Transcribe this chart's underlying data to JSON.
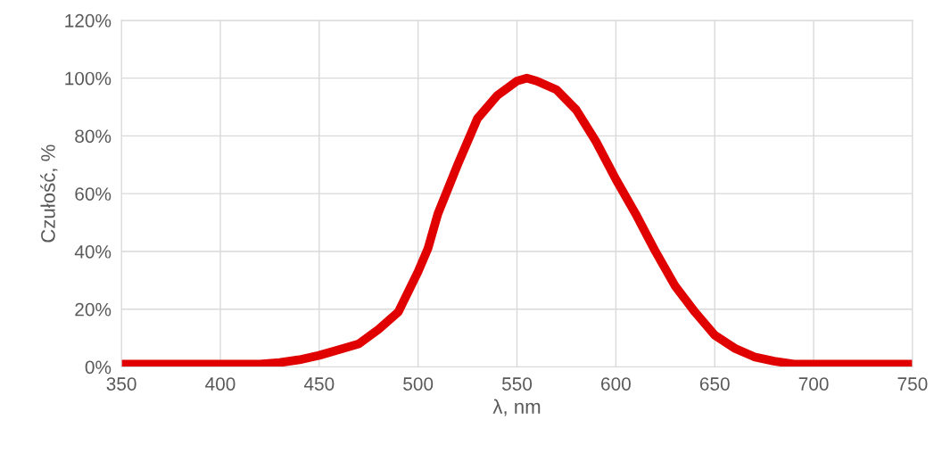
{
  "chart_data": {
    "type": "line",
    "xlabel": "λ, nm",
    "ylabel": "Czułość, %",
    "x": [
      350,
      375,
      400,
      420,
      430,
      440,
      450,
      460,
      470,
      480,
      490,
      500,
      505,
      510,
      520,
      530,
      540,
      550,
      555,
      560,
      570,
      580,
      590,
      600,
      610,
      620,
      630,
      640,
      650,
      660,
      670,
      680,
      690,
      700,
      725,
      750
    ],
    "series": [
      {
        "values": [
          1,
          1,
          1,
          1,
          1.5,
          2.5,
          4,
          6,
          8,
          13,
          19,
          33,
          41,
          53,
          70,
          86,
          94,
          99,
          100,
          99,
          96,
          89,
          78,
          65,
          53,
          40,
          28,
          19,
          11,
          6.5,
          3.5,
          2,
          1,
          1,
          1,
          1
        ],
        "color": "#e00000"
      }
    ],
    "xlim": [
      350,
      750
    ],
    "xticks": [
      350,
      400,
      450,
      500,
      550,
      600,
      650,
      700,
      750
    ],
    "ylim": [
      0,
      120
    ],
    "yticks": [
      {
        "value": 0,
        "label": "0%"
      },
      {
        "value": 20,
        "label": "20%"
      },
      {
        "value": 40,
        "label": "40%"
      },
      {
        "value": 60,
        "label": "60%"
      },
      {
        "value": 80,
        "label": "80%"
      },
      {
        "value": 100,
        "label": "100%"
      },
      {
        "value": 120,
        "label": "120%"
      }
    ],
    "grid": true,
    "legend": false
  }
}
